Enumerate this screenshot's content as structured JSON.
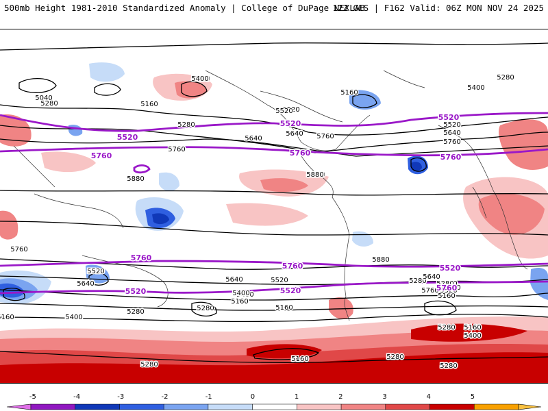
{
  "header": {
    "title": "500mb Height 1981-2010 Standardized Anomaly | College of DuPage NEXLAB",
    "run_info": "12Z GFS | F162 Valid: 06Z MON NOV 24 2025"
  },
  "colorbar": {
    "ticks": [
      "-5",
      "-4",
      "-3",
      "-2",
      "-1",
      "0",
      "1",
      "2",
      "3",
      "4",
      "5"
    ],
    "colors": [
      "#e070e8",
      "#9018c0",
      "#1038b8",
      "#2f5fe0",
      "#7aa4f0",
      "#c6dcf8",
      "#ffffff",
      "#f8c4c4",
      "#f08484",
      "#e04848",
      "#c80000",
      "#f8a000",
      "#f8c040"
    ]
  },
  "contours": {
    "black_labels": [
      "5160",
      "5280",
      "5400",
      "5040",
      "5280",
      "5160",
      "5280",
      "5400",
      "5520",
      "5640",
      "5760",
      "5880",
      "5280",
      "5520",
      "5640",
      "5760",
      "5880",
      "5520",
      "5640",
      "5760",
      "5400",
      "5280",
      "5160",
      "5640",
      "5520",
      "5400",
      "5280",
      "5160",
      "5400",
      "5160",
      "5280",
      "5160",
      "5400",
      "5520",
      "5640",
      "5760",
      "5880",
      "5280",
      "5160",
      "5280",
      "5160",
      "5280",
      "5520",
      "5640",
      "5760",
      "5520",
      "5400",
      "5280",
      "5280",
      "5160",
      "5280",
      "5280"
    ],
    "purple_labels": [
      "5520",
      "5760",
      "5520",
      "5760",
      "5520",
      "5760",
      "5760",
      "5520",
      "5760",
      "5520",
      "5760",
      "5520"
    ]
  }
}
